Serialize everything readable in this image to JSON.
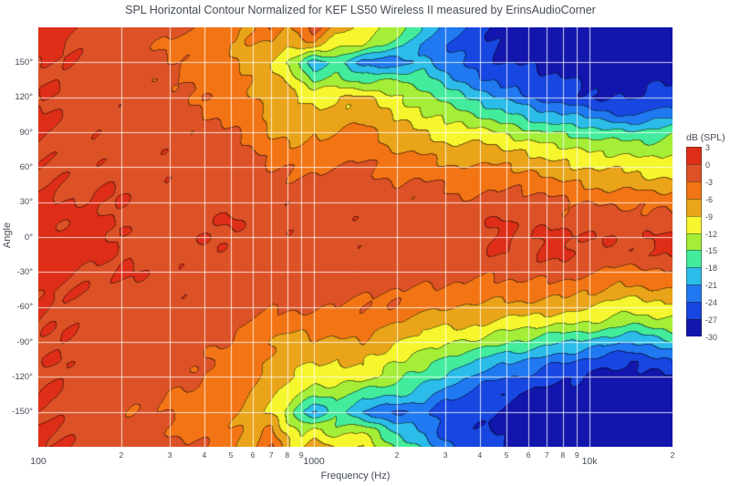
{
  "title": "SPL Horizontal Contour Normalized for KEF LS50 Wireless II measured by ErinsAudioCorner",
  "chart_data": {
    "type": "heatmap",
    "subtype": "filled-contour",
    "title": "SPL Horizontal Contour Normalized for KEF LS50 Wireless II measured by ErinsAudioCorner",
    "xlabel": "Frequency (Hz)",
    "ylabel": "Angle",
    "x_scale": "log",
    "x_range": [
      100,
      20000
    ],
    "y_range": [
      -180,
      180
    ],
    "grid": true,
    "grid_color": "rgba(255,255,255,0.8)",
    "text_color": "#444b55",
    "x_ticks_major": [
      {
        "value": 100,
        "label": "100"
      },
      {
        "value": 1000,
        "label": "1000"
      },
      {
        "value": 10000,
        "label": "10k"
      }
    ],
    "x_ticks_minor": [
      {
        "value": 200,
        "label": "2"
      },
      {
        "value": 300,
        "label": "3"
      },
      {
        "value": 400,
        "label": "4"
      },
      {
        "value": 500,
        "label": "5"
      },
      {
        "value": 600,
        "label": "6"
      },
      {
        "value": 700,
        "label": "7"
      },
      {
        "value": 800,
        "label": "8"
      },
      {
        "value": 900,
        "label": "9"
      },
      {
        "value": 2000,
        "label": "2"
      },
      {
        "value": 3000,
        "label": "3"
      },
      {
        "value": 4000,
        "label": "4"
      },
      {
        "value": 5000,
        "label": "5"
      },
      {
        "value": 6000,
        "label": "6"
      },
      {
        "value": 7000,
        "label": "7"
      },
      {
        "value": 8000,
        "label": "8"
      },
      {
        "value": 9000,
        "label": "9"
      },
      {
        "value": 20000,
        "label": "2"
      }
    ],
    "y_ticks": [
      {
        "value": 150,
        "label": "150°"
      },
      {
        "value": 120,
        "label": "120°"
      },
      {
        "value": 90,
        "label": "90°"
      },
      {
        "value": 60,
        "label": "60°"
      },
      {
        "value": 30,
        "label": "30°"
      },
      {
        "value": 0,
        "label": "0°"
      },
      {
        "value": -30,
        "label": "-30°"
      },
      {
        "value": -60,
        "label": "-60°"
      },
      {
        "value": -90,
        "label": "-90°"
      },
      {
        "value": -120,
        "label": "-120°"
      },
      {
        "value": -150,
        "label": "-150°"
      }
    ],
    "levels": {
      "min": -30,
      "max": 3,
      "step": 3
    },
    "colorbar": {
      "title": "dB (SPL)",
      "tick_labels": [
        "3",
        "0",
        "-3",
        "-6",
        "-9",
        "-12",
        "-15",
        "-18",
        "-21",
        "-24",
        "-27",
        "-30"
      ],
      "colors": [
        "#de2e18",
        "#dc5226",
        "#f37414",
        "#e9a419",
        "#f6f62e",
        "#a4ee37",
        "#43ec9c",
        "#2cbcea",
        "#2079f0",
        "#1746e0",
        "#1216ac"
      ]
    },
    "frequencies": [
      100,
      150,
      200,
      300,
      400,
      500,
      600,
      700,
      800,
      900,
      1000,
      1200,
      1500,
      2000,
      2500,
      3000,
      4000,
      5000,
      6000,
      8000,
      10000,
      14000,
      20000
    ],
    "angles": [
      180,
      165,
      150,
      135,
      120,
      105,
      90,
      75,
      60,
      45,
      30,
      15,
      0,
      -15,
      -30,
      -45,
      -60,
      -75,
      -90,
      -105,
      -120,
      -135,
      -150,
      -165,
      -180
    ],
    "values": [
      [
        1,
        -1,
        -1,
        -2,
        -4,
        -5,
        -6,
        -3,
        -7,
        -4,
        -2,
        -8,
        -9,
        -14,
        -18,
        -22,
        -26,
        -27,
        -28,
        -29,
        -30,
        -30,
        -29
      ],
      [
        1,
        -1,
        -2,
        -3,
        -5,
        -6,
        -6,
        -6,
        -9,
        -8,
        -7,
        -12,
        -12,
        -17,
        -21,
        -24,
        -26,
        -28,
        -28,
        -29,
        -30,
        -30,
        -29
      ],
      [
        0,
        -1,
        -2,
        -3,
        -4,
        -5,
        -7,
        -9,
        -12,
        -15,
        -21,
        -17,
        -22,
        -23,
        -20,
        -23,
        -26,
        -27,
        -27,
        -28,
        -29,
        -29,
        -28
      ],
      [
        0,
        -1,
        -2,
        -3,
        -4,
        -5,
        -7,
        -8,
        -9,
        -13,
        -16,
        -13,
        -16,
        -15,
        -17,
        -20,
        -23,
        -25,
        -26,
        -27,
        -28,
        -28,
        -27
      ],
      [
        0,
        -1,
        -1,
        -2,
        -3,
        -4,
        -6,
        -8,
        -7,
        -9,
        -10,
        -9,
        -8,
        -12,
        -14,
        -16,
        -19,
        -22,
        -24,
        -26,
        -27,
        -27,
        -26
      ],
      [
        0,
        -1,
        -1,
        -2,
        -3,
        -3,
        -5,
        -7,
        -8,
        -8,
        -9,
        -8,
        -7,
        -10,
        -12,
        -13,
        -15,
        -17,
        -19,
        -21,
        -22,
        -24,
        -22
      ],
      [
        0,
        -1,
        -1,
        -2,
        -2,
        -3,
        -4,
        -6,
        -7,
        -7,
        -6,
        -6,
        -5,
        -8,
        -9,
        -10,
        -11,
        -13,
        -14,
        -15,
        -16,
        -18,
        -16
      ],
      [
        0,
        -1,
        -1,
        -1,
        -2,
        -2,
        -3,
        -4,
        -5,
        -5,
        -4,
        -4,
        -4,
        -6,
        -7,
        -8,
        -8,
        -9,
        -10,
        -11,
        -12,
        -13,
        -13
      ],
      [
        0,
        -1,
        -1,
        -1,
        -1,
        -2,
        -2,
        -3,
        -3,
        -3,
        -3,
        -3,
        -3,
        -4,
        -5,
        -5,
        -6,
        -6,
        -7,
        -8,
        -9,
        -10,
        -10
      ],
      [
        0,
        0,
        -1,
        -1,
        -1,
        -1,
        -2,
        -2,
        -2,
        -2,
        -2,
        -2,
        -2,
        -3,
        -3,
        -3,
        -4,
        -4,
        -4,
        -5,
        -6,
        -7,
        -8
      ],
      [
        1,
        0,
        0,
        -1,
        -1,
        -1,
        -1,
        -1,
        -1,
        -1,
        -1,
        -1,
        -1,
        -2,
        -2,
        -2,
        -2,
        -2,
        -2,
        -3,
        -3,
        -4,
        -4
      ],
      [
        1,
        0,
        0,
        -1,
        -1,
        0,
        -1,
        -1,
        -1,
        -1,
        -1,
        -1,
        -1,
        -1,
        -1,
        -1,
        -1,
        0,
        -1,
        -2,
        -1,
        -2,
        -2
      ],
      [
        1,
        1,
        0,
        -1,
        0,
        -1,
        0,
        -1,
        -1,
        -1,
        -1,
        -1,
        -1,
        -1,
        -1,
        -1,
        -1,
        1,
        0,
        1,
        0,
        -1,
        1
      ],
      [
        1,
        1,
        0,
        -1,
        -1,
        -1,
        -1,
        -1,
        -1,
        -1,
        -1,
        -1,
        -1,
        -1,
        -1,
        -1,
        -1,
        0,
        -1,
        1,
        -1,
        -1,
        1
      ],
      [
        1,
        0,
        0,
        -1,
        -1,
        -1,
        -1,
        -1,
        -1,
        -1,
        -1,
        -1,
        -1,
        -2,
        -2,
        -2,
        -2,
        -2,
        -2,
        -2,
        -3,
        -4,
        -3
      ],
      [
        0,
        0,
        -1,
        -1,
        -1,
        -1,
        -1,
        -2,
        -2,
        -2,
        -2,
        -2,
        -2,
        -3,
        -3,
        -3,
        -4,
        -4,
        -4,
        -5,
        -6,
        -7,
        -6
      ],
      [
        0,
        -1,
        -1,
        -1,
        -1,
        -2,
        -2,
        -3,
        -3,
        -3,
        -3,
        -3,
        -3,
        -4,
        -5,
        -6,
        -6,
        -7,
        -7,
        -8,
        -9,
        -11,
        -10
      ],
      [
        0,
        -1,
        -1,
        -1,
        -2,
        -2,
        -3,
        -4,
        -5,
        -5,
        -4,
        -5,
        -4,
        -6,
        -8,
        -9,
        -9,
        -10,
        -11,
        -12,
        -13,
        -15,
        -13
      ],
      [
        0,
        -1,
        -1,
        -2,
        -2,
        -3,
        -5,
        -6,
        -7,
        -7,
        -6,
        -7,
        -6,
        -9,
        -11,
        -12,
        -13,
        -15,
        -16,
        -18,
        -19,
        -21,
        -18
      ],
      [
        0,
        -1,
        -1,
        -2,
        -3,
        -4,
        -5,
        -7,
        -8,
        -8,
        -9,
        -9,
        -8,
        -12,
        -14,
        -16,
        -18,
        -20,
        -21,
        -23,
        -25,
        -26,
        -24
      ],
      [
        0,
        -1,
        -1,
        -2,
        -3,
        -4,
        -6,
        -8,
        -8,
        -9,
        -11,
        -10,
        -10,
        -14,
        -17,
        -19,
        -22,
        -24,
        -25,
        -27,
        -28,
        -28,
        -27
      ],
      [
        0,
        -1,
        -2,
        -3,
        -4,
        -5,
        -6,
        -8,
        -10,
        -13,
        -15,
        -14,
        -17,
        -18,
        -20,
        -23,
        -25,
        -27,
        -27,
        -28,
        -29,
        -29,
        -28
      ],
      [
        0,
        -1,
        -2,
        -3,
        -4,
        -5,
        -7,
        -9,
        -13,
        -17,
        -21,
        -16,
        -22,
        -24,
        -23,
        -25,
        -27,
        -28,
        -28,
        -29,
        -30,
        -30,
        -29
      ],
      [
        1,
        -1,
        -2,
        -3,
        -4,
        -6,
        -7,
        -5,
        -10,
        -13,
        -11,
        -14,
        -13,
        -19,
        -22,
        -25,
        -27,
        -28,
        -28,
        -29,
        -30,
        -30,
        -29
      ],
      [
        1,
        -1,
        -1,
        -2,
        -3,
        -5,
        -7,
        -2,
        -8,
        -9,
        -6,
        -10,
        -9,
        -15,
        -19,
        -23,
        -26,
        -27,
        -28,
        -29,
        -30,
        -30,
        -29
      ]
    ]
  }
}
